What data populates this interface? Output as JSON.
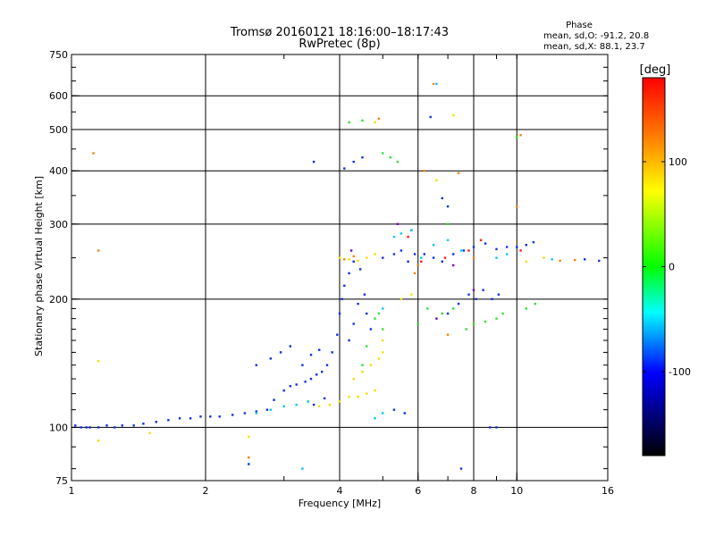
{
  "chart_data": {
    "type": "scatter",
    "title": "Tromsø 20160121 18:16:00–18:17:43",
    "subtitle": "RwPretec (8p)",
    "xlabel": "Frequency [MHz]",
    "ylabel": "Stationary phase Virtual Height [km]",
    "x_scale": "log",
    "y_scale": "log",
    "xlim": [
      1,
      16
    ],
    "ylim": [
      75,
      750
    ],
    "x_ticks": [
      1,
      2,
      4,
      6,
      8,
      10,
      16
    ],
    "y_ticks": [
      75,
      100,
      200,
      300,
      400,
      500,
      600,
      750
    ],
    "x_gridlines": [
      2,
      4,
      6,
      8,
      10
    ],
    "y_gridlines": [
      100,
      200,
      300,
      400,
      500,
      600
    ],
    "phase_stats": {
      "heading": "Phase",
      "line_o": "mean, sd,O: -91.2, 20.8",
      "line_x": "mean, sd,X:  88.1, 23.7"
    },
    "colorbar": {
      "label": "[deg]",
      "range": [
        -180,
        180
      ],
      "ticks": [
        100,
        0,
        -100
      ],
      "colors": [
        "#ff0000",
        "#ff8000",
        "#ffff00",
        "#00ff00",
        "#00ffff",
        "#0000ff",
        "#000000"
      ]
    },
    "series": [
      {
        "color": "#1030e0",
        "points": [
          [
            1.02,
            101
          ],
          [
            1.05,
            100
          ],
          [
            1.08,
            100
          ],
          [
            1.1,
            100
          ],
          [
            1.15,
            100
          ],
          [
            1.2,
            101
          ],
          [
            1.25,
            100
          ],
          [
            1.3,
            101
          ],
          [
            1.38,
            101
          ],
          [
            1.45,
            102
          ],
          [
            1.55,
            103
          ],
          [
            1.65,
            104
          ],
          [
            1.75,
            105
          ],
          [
            1.85,
            105
          ],
          [
            1.95,
            106
          ],
          [
            2.05,
            106
          ],
          [
            2.15,
            106
          ],
          [
            2.3,
            107
          ],
          [
            2.45,
            108
          ],
          [
            2.6,
            109
          ],
          [
            2.75,
            110
          ],
          [
            2.85,
            116
          ],
          [
            3.0,
            122
          ],
          [
            3.1,
            125
          ],
          [
            3.2,
            126
          ],
          [
            3.35,
            128
          ],
          [
            3.45,
            130
          ],
          [
            3.55,
            133
          ],
          [
            3.65,
            135
          ],
          [
            3.75,
            140
          ],
          [
            3.85,
            150
          ],
          [
            3.95,
            165
          ],
          [
            4.0,
            185
          ],
          [
            4.05,
            200
          ],
          [
            4.1,
            215
          ],
          [
            4.2,
            230
          ],
          [
            4.3,
            245
          ],
          [
            4.45,
            235
          ],
          [
            4.55,
            205
          ],
          [
            4.6,
            185
          ],
          [
            4.7,
            170
          ],
          [
            2.8,
            145
          ],
          [
            2.95,
            150
          ],
          [
            3.1,
            155
          ],
          [
            3.3,
            140
          ],
          [
            3.45,
            148
          ],
          [
            3.6,
            152
          ],
          [
            2.6,
            140
          ],
          [
            4.2,
            160
          ],
          [
            4.3,
            175
          ],
          [
            4.4,
            195
          ],
          [
            3.7,
            117
          ],
          [
            3.5,
            113
          ],
          [
            4.1,
            405
          ],
          [
            4.3,
            420
          ],
          [
            4.5,
            430
          ],
          [
            5.0,
            250
          ],
          [
            5.3,
            255
          ],
          [
            5.5,
            260
          ],
          [
            5.7,
            245
          ],
          [
            5.9,
            255
          ],
          [
            6.2,
            255
          ],
          [
            6.5,
            250
          ],
          [
            6.8,
            245
          ],
          [
            7.2,
            255
          ],
          [
            7.6,
            260
          ],
          [
            8.0,
            265
          ],
          [
            8.5,
            270
          ],
          [
            9.0,
            262
          ],
          [
            9.5,
            265
          ],
          [
            10.0,
            265
          ],
          [
            10.5,
            268
          ],
          [
            10.9,
            272
          ],
          [
            7.8,
            205
          ],
          [
            8.1,
            200
          ],
          [
            8.4,
            210
          ],
          [
            8.8,
            200
          ],
          [
            9.1,
            205
          ],
          [
            7.0,
            185
          ],
          [
            7.4,
            195
          ],
          [
            6.4,
            535
          ],
          [
            6.8,
            345
          ],
          [
            7.0,
            330
          ],
          [
            5.3,
            110
          ],
          [
            5.6,
            108
          ],
          [
            8.7,
            100
          ],
          [
            9.0,
            100
          ],
          [
            7.5,
            80
          ],
          [
            3.5,
            420
          ],
          [
            14.2,
            248
          ],
          [
            15.3,
            246
          ],
          [
            2.5,
            82
          ],
          [
            5.8,
            290
          ]
        ]
      },
      {
        "color": "#00c8e8",
        "points": [
          [
            2.6,
            108
          ],
          [
            2.8,
            110
          ],
          [
            3.0,
            112
          ],
          [
            3.2,
            113
          ],
          [
            3.4,
            115
          ],
          [
            4.8,
            105
          ],
          [
            5.0,
            108
          ],
          [
            5.3,
            280
          ],
          [
            5.5,
            285
          ],
          [
            5.8,
            290
          ],
          [
            6.5,
            268
          ],
          [
            7.0,
            275
          ],
          [
            7.5,
            260
          ],
          [
            9.0,
            250
          ],
          [
            9.5,
            255
          ],
          [
            6.1,
            250
          ],
          [
            6.6,
            640
          ],
          [
            12.0,
            248
          ],
          [
            5.0,
            190
          ],
          [
            3.3,
            80
          ]
        ]
      },
      {
        "color": "#30e030",
        "points": [
          [
            4.8,
            180
          ],
          [
            4.9,
            185
          ],
          [
            5.0,
            170
          ],
          [
            4.6,
            155
          ],
          [
            4.5,
            140
          ],
          [
            6.0,
            175
          ],
          [
            6.3,
            190
          ],
          [
            6.8,
            185
          ],
          [
            7.2,
            190
          ],
          [
            7.7,
            170
          ],
          [
            8.0,
            175
          ],
          [
            8.5,
            177
          ],
          [
            9.0,
            180
          ],
          [
            9.3,
            185
          ],
          [
            10.5,
            190
          ],
          [
            11.0,
            195
          ],
          [
            5.0,
            440
          ],
          [
            5.2,
            430
          ],
          [
            5.4,
            420
          ],
          [
            7.0,
            300
          ],
          [
            4.2,
            520
          ],
          [
            4.5,
            525
          ],
          [
            10.0,
            480
          ]
        ]
      },
      {
        "color": "#f0e000",
        "points": [
          [
            1.15,
            93
          ],
          [
            1.5,
            97
          ],
          [
            3.6,
            112
          ],
          [
            3.8,
            113
          ],
          [
            4.0,
            115
          ],
          [
            4.2,
            118
          ],
          [
            4.4,
            118
          ],
          [
            4.6,
            120
          ],
          [
            4.8,
            122
          ],
          [
            4.3,
            130
          ],
          [
            4.5,
            135
          ],
          [
            4.7,
            140
          ],
          [
            4.9,
            145
          ],
          [
            5.0,
            150
          ],
          [
            5.0,
            160
          ],
          [
            4.0,
            250
          ],
          [
            4.2,
            248
          ],
          [
            4.4,
            246
          ],
          [
            4.6,
            250
          ],
          [
            4.8,
            255
          ],
          [
            7.2,
            540
          ],
          [
            5.5,
            200
          ],
          [
            5.8,
            205
          ],
          [
            4.8,
            520
          ],
          [
            6.6,
            380
          ],
          [
            10.5,
            245
          ],
          [
            11.5,
            250
          ],
          [
            1.15,
            143
          ],
          [
            2.5,
            95
          ]
        ]
      },
      {
        "color": "#ff8000",
        "points": [
          [
            1.12,
            440
          ],
          [
            1.15,
            260
          ],
          [
            4.1,
            248
          ],
          [
            4.3,
            252
          ],
          [
            6.5,
            640
          ],
          [
            7.4,
            395
          ],
          [
            6.2,
            400
          ],
          [
            12.5,
            246
          ],
          [
            13.5,
            247
          ],
          [
            10.0,
            330
          ],
          [
            6.0,
            240
          ],
          [
            7.0,
            165
          ],
          [
            2.5,
            85
          ],
          [
            10.2,
            485
          ],
          [
            4.9,
            530
          ],
          [
            8.0,
            250
          ],
          [
            5.9,
            230
          ]
        ]
      },
      {
        "color": "#ff1a1a",
        "points": [
          [
            6.1,
            245
          ],
          [
            7.8,
            260
          ],
          [
            8.3,
            275
          ],
          [
            10.2,
            260
          ],
          [
            5.7,
            280
          ],
          [
            6.9,
            250
          ]
        ]
      },
      {
        "color": "#7000c0",
        "points": [
          [
            6.6,
            180
          ],
          [
            8.0,
            210
          ],
          [
            7.2,
            240
          ],
          [
            5.4,
            300
          ],
          [
            4.25,
            260
          ]
        ]
      }
    ]
  }
}
